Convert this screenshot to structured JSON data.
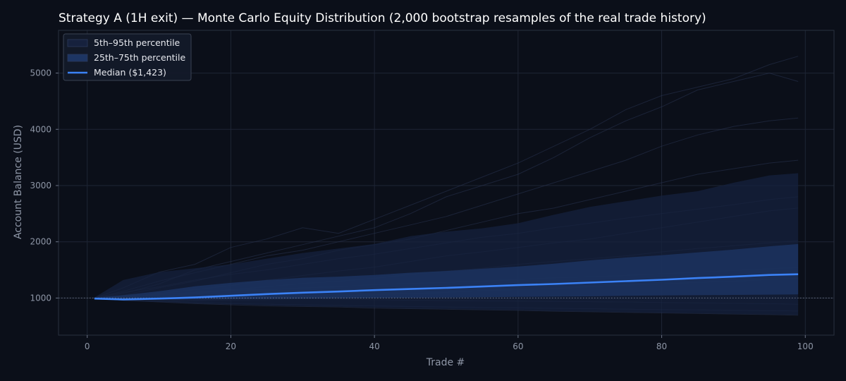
{
  "chart_data": {
    "type": "area",
    "title": "Strategy A (1H exit) — Monte Carlo Equity Distribution (2,000 bootstrap resamples of the real trade history)",
    "xlabel": "Trade #",
    "ylabel": "Account Balance (USD)",
    "xlim": [
      -4,
      104
    ],
    "ylim": [
      340,
      5760
    ],
    "xticks": [
      0,
      20,
      40,
      60,
      80,
      100
    ],
    "yticks": [
      1000,
      2000,
      3000,
      4000,
      5000
    ],
    "grid": true,
    "legend_position": "top-left",
    "reference_line": {
      "y": 1000,
      "style": "dotted"
    },
    "x": [
      1,
      5,
      10,
      15,
      20,
      25,
      30,
      35,
      40,
      45,
      50,
      55,
      60,
      65,
      70,
      75,
      80,
      85,
      90,
      95,
      99
    ],
    "band_outer": {
      "name": "5th–95th percentile",
      "color": "#16213d",
      "lower": [
        990,
        960,
        930,
        905,
        890,
        870,
        855,
        845,
        830,
        815,
        805,
        795,
        785,
        770,
        760,
        750,
        740,
        730,
        720,
        710,
        700
      ],
      "upper": [
        1010,
        1320,
        1460,
        1530,
        1600,
        1700,
        1800,
        1880,
        1960,
        2100,
        2180,
        2240,
        2330,
        2480,
        2620,
        2720,
        2820,
        2900,
        3050,
        3180,
        3220
      ]
    },
    "band_inner": {
      "name": "25th–75th percentile",
      "color": "#1d3563",
      "lower": [
        995,
        985,
        975,
        975,
        980,
        985,
        990,
        995,
        1000,
        1005,
        1010,
        1015,
        1020,
        1025,
        1030,
        1040,
        1045,
        1050,
        1055,
        1060,
        1065
      ],
      "upper": [
        1005,
        1050,
        1120,
        1210,
        1270,
        1320,
        1360,
        1380,
        1410,
        1450,
        1480,
        1520,
        1560,
        1610,
        1670,
        1720,
        1760,
        1810,
        1860,
        1920,
        1960
      ]
    },
    "series": [
      {
        "name": "Median ($1,423)",
        "color": "#3b82f6",
        "values": [
          990,
          975,
          990,
          1010,
          1040,
          1070,
          1095,
          1115,
          1140,
          1160,
          1180,
          1205,
          1230,
          1250,
          1275,
          1300,
          1325,
          1355,
          1380,
          1410,
          1423
        ]
      }
    ],
    "sample_paths": [
      [
        1000,
        1180,
        1460,
        1600,
        1900,
        2050,
        2250,
        2150,
        2400,
        2650,
        2900,
        3150,
        3400,
        3700,
        4000,
        4350,
        4600,
        4750,
        4900,
        5150,
        5300
      ],
      [
        1000,
        1080,
        1250,
        1500,
        1650,
        1800,
        1950,
        2100,
        2250,
        2500,
        2800,
        3000,
        3200,
        3500,
        3850,
        4150,
        4400,
        4700,
        4850,
        5000,
        4850
      ],
      [
        1000,
        1120,
        1300,
        1450,
        1600,
        1750,
        1850,
        2000,
        2150,
        2300,
        2450,
        2650,
        2850,
        3050,
        3250,
        3450,
        3700,
        3900,
        4050,
        4150,
        4200
      ],
      [
        1000,
        1050,
        1180,
        1300,
        1450,
        1600,
        1700,
        1850,
        1950,
        2050,
        2200,
        2350,
        2500,
        2600,
        2750,
        2900,
        3050,
        3200,
        3300,
        3400,
        3450
      ],
      [
        1000,
        1000,
        1080,
        1150,
        1220,
        1320,
        1400,
        1480,
        1550,
        1650,
        1750,
        1820,
        1900,
        1980,
        2050,
        2150,
        2250,
        2350,
        2450,
        2550,
        2600
      ],
      [
        1000,
        980,
        1020,
        1080,
        1150,
        1200,
        1260,
        1300,
        1350,
        1420,
        1480,
        1530,
        1600,
        1650,
        1700,
        1750,
        1820,
        1880,
        1930,
        1980,
        2020
      ],
      [
        1000,
        960,
        940,
        960,
        980,
        1000,
        1010,
        1040,
        1060,
        1080,
        1100,
        1130,
        1150,
        1170,
        1200,
        1230,
        1250,
        1280,
        1300,
        1330,
        1350
      ],
      [
        1000,
        970,
        950,
        920,
        900,
        890,
        880,
        870,
        860,
        850,
        840,
        830,
        825,
        815,
        810,
        800,
        795,
        790,
        780,
        775,
        770
      ],
      [
        1000,
        960,
        930,
        900,
        880,
        860,
        850,
        840,
        820,
        810,
        800,
        790,
        780,
        765,
        755,
        745,
        735,
        725,
        715,
        705,
        695
      ],
      [
        1000,
        1020,
        1060,
        1100,
        1140,
        1150,
        1180,
        1200,
        1240,
        1260,
        1280,
        1300,
        1330,
        1360,
        1380,
        1400,
        1430,
        1460,
        1490,
        1520,
        1540
      ],
      [
        1000,
        1100,
        1200,
        1320,
        1420,
        1500,
        1600,
        1700,
        1780,
        1880,
        1980,
        2080,
        2150,
        2250,
        2330,
        2420,
        2500,
        2580,
        2660,
        2750,
        2800
      ],
      [
        1000,
        990,
        970,
        950,
        960,
        970,
        990,
        980,
        970,
        960,
        955,
        950,
        945,
        940,
        935,
        930,
        920,
        915,
        905,
        900,
        890
      ]
    ]
  }
}
